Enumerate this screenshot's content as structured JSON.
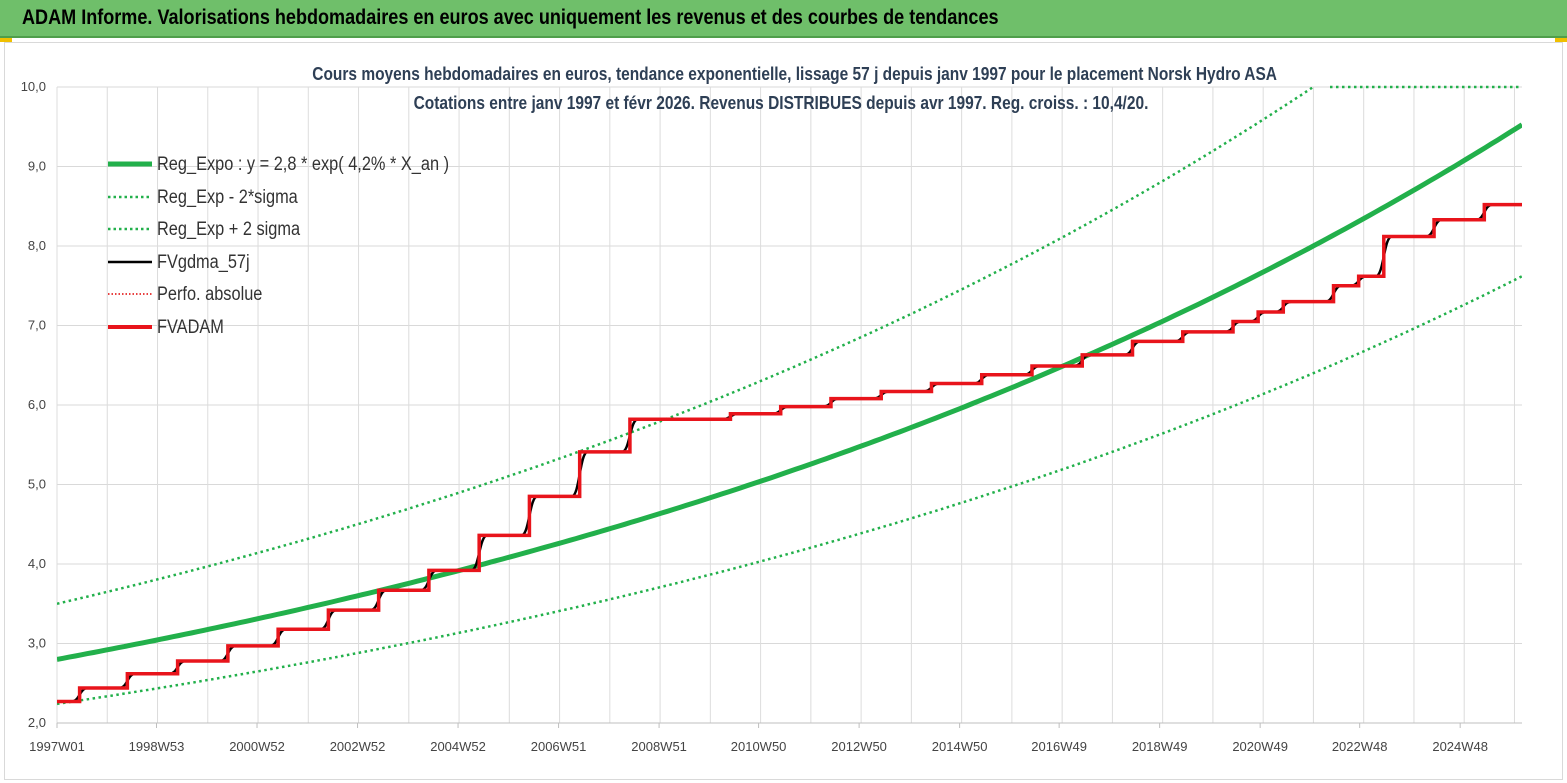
{
  "header": {
    "title": "ADAM Informe. Valorisations hebdomadaires en euros avec uniquement les revenus et des courbes de tendances"
  },
  "chart_data": {
    "type": "line",
    "title": "Cours moyens hebdomadaires en euros, tendance exponentielle, lissage 57 j depuis janv 1997 pour le placement Norsk Hydro ASA",
    "subtitle": "Cotations entre janv 1997 et févr 2026. Revenus DISTRIBUES depuis avr 1997. Reg. croiss. : 10,4/20.",
    "xlabel": "",
    "ylabel": "",
    "x_range": [
      1997.0,
      2026.15
    ],
    "ylim": [
      2.0,
      10.0
    ],
    "y_ticks": [
      "2,0",
      "3,0",
      "4,0",
      "5,0",
      "6,0",
      "7,0",
      "8,0",
      "9,0",
      "10,0"
    ],
    "x_tick_labels": [
      {
        "label": "1997W01",
        "x": 1997.0
      },
      {
        "label": "1998W53",
        "x": 1998.98
      },
      {
        "label": "2000W52",
        "x": 2000.98
      },
      {
        "label": "2002W52",
        "x": 2002.98
      },
      {
        "label": "2004W52",
        "x": 2004.98
      },
      {
        "label": "2006W51",
        "x": 2006.98
      },
      {
        "label": "2008W51",
        "x": 2008.98
      },
      {
        "label": "2010W50",
        "x": 2010.96
      },
      {
        "label": "2012W50",
        "x": 2012.96
      },
      {
        "label": "2014W50",
        "x": 2014.96
      },
      {
        "label": "2016W49",
        "x": 2016.94
      },
      {
        "label": "2018W49",
        "x": 2018.94
      },
      {
        "label": "2020W49",
        "x": 2020.94
      },
      {
        "label": "2022W48",
        "x": 2022.92
      },
      {
        "label": "2024W48",
        "x": 2024.92
      }
    ],
    "grid": true,
    "legend_position": "top-left",
    "series": [
      {
        "name": "Reg_Expo : y = 2,8 * exp( 4,2% *  X_an )",
        "color": "#22b04b",
        "style": "solid-thick",
        "formula": {
          "a": 2.8,
          "b": 0.042
        }
      },
      {
        "name": "Reg_Exp - 2*sigma",
        "color": "#22b04b",
        "style": "dotted",
        "formula": {
          "a": 2.24,
          "b": 0.042
        }
      },
      {
        "name": "Reg_Exp + 2 sigma",
        "color": "#22b04b",
        "style": "dotted",
        "formula": {
          "a": 3.5,
          "b": 0.042
        }
      },
      {
        "name": "FVgdma_57j",
        "color": "#000000",
        "style": "solid"
      },
      {
        "name": "Perfo. absolue",
        "color": "#e00000",
        "style": "dotted"
      },
      {
        "name": "FVADAM",
        "color": "#e8141b",
        "style": "solid-thick",
        "steps": [
          {
            "x": 1997.0,
            "y": 2.27
          },
          {
            "x": 1997.45,
            "y": 2.44
          },
          {
            "x": 1998.4,
            "y": 2.62
          },
          {
            "x": 1999.4,
            "y": 2.78
          },
          {
            "x": 2000.4,
            "y": 2.97
          },
          {
            "x": 2001.4,
            "y": 3.18
          },
          {
            "x": 2002.4,
            "y": 3.42
          },
          {
            "x": 2003.4,
            "y": 3.67
          },
          {
            "x": 2004.4,
            "y": 3.92
          },
          {
            "x": 2005.4,
            "y": 4.36
          },
          {
            "x": 2006.4,
            "y": 4.85
          },
          {
            "x": 2007.4,
            "y": 5.41
          },
          {
            "x": 2008.4,
            "y": 5.82
          },
          {
            "x": 2010.4,
            "y": 5.89
          },
          {
            "x": 2011.4,
            "y": 5.98
          },
          {
            "x": 2012.4,
            "y": 6.08
          },
          {
            "x": 2013.4,
            "y": 6.17
          },
          {
            "x": 2014.4,
            "y": 6.27
          },
          {
            "x": 2015.4,
            "y": 6.38
          },
          {
            "x": 2016.4,
            "y": 6.49
          },
          {
            "x": 2017.4,
            "y": 6.63
          },
          {
            "x": 2018.4,
            "y": 6.8
          },
          {
            "x": 2019.4,
            "y": 6.92
          },
          {
            "x": 2020.4,
            "y": 7.05
          },
          {
            "x": 2020.9,
            "y": 7.17
          },
          {
            "x": 2021.4,
            "y": 7.3
          },
          {
            "x": 2022.4,
            "y": 7.5
          },
          {
            "x": 2022.9,
            "y": 7.62
          },
          {
            "x": 2023.4,
            "y": 8.12
          },
          {
            "x": 2024.4,
            "y": 8.33
          },
          {
            "x": 2025.4,
            "y": 8.52
          },
          {
            "x": 2026.15,
            "y": 8.52
          }
        ]
      }
    ]
  }
}
